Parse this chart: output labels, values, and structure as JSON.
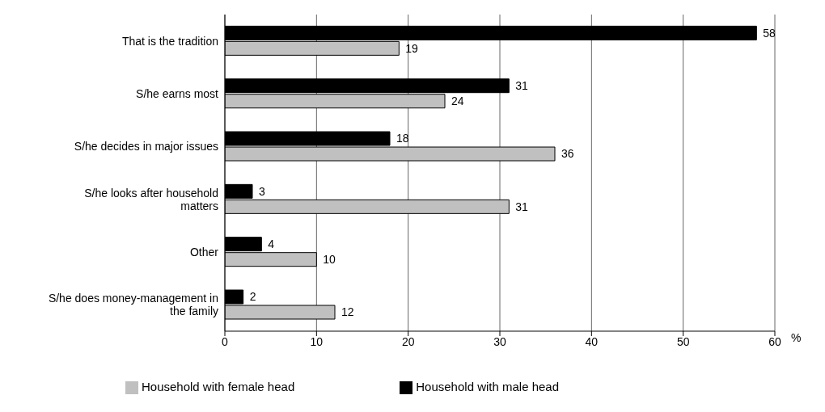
{
  "chart_data": {
    "type": "bar",
    "orientation": "horizontal",
    "categories": [
      "That is the tradition",
      "S/he earns most",
      "S/he decides in major issues",
      "S/he looks after household matters",
      "Other",
      "S/he does money-management in the family"
    ],
    "series": [
      {
        "name": "Household with male head",
        "color": "#000000",
        "values": [
          58,
          31,
          18,
          3,
          4,
          2
        ]
      },
      {
        "name": "Household with female head",
        "color": "#c0c0c0",
        "values": [
          19,
          24,
          36,
          31,
          10,
          12
        ]
      }
    ],
    "xlim": [
      0,
      60
    ],
    "xticks": [
      0,
      10,
      20,
      30,
      40,
      50,
      60
    ],
    "xlabel": "%",
    "grid": "x",
    "legend": "bottom",
    "data_labels": true
  }
}
